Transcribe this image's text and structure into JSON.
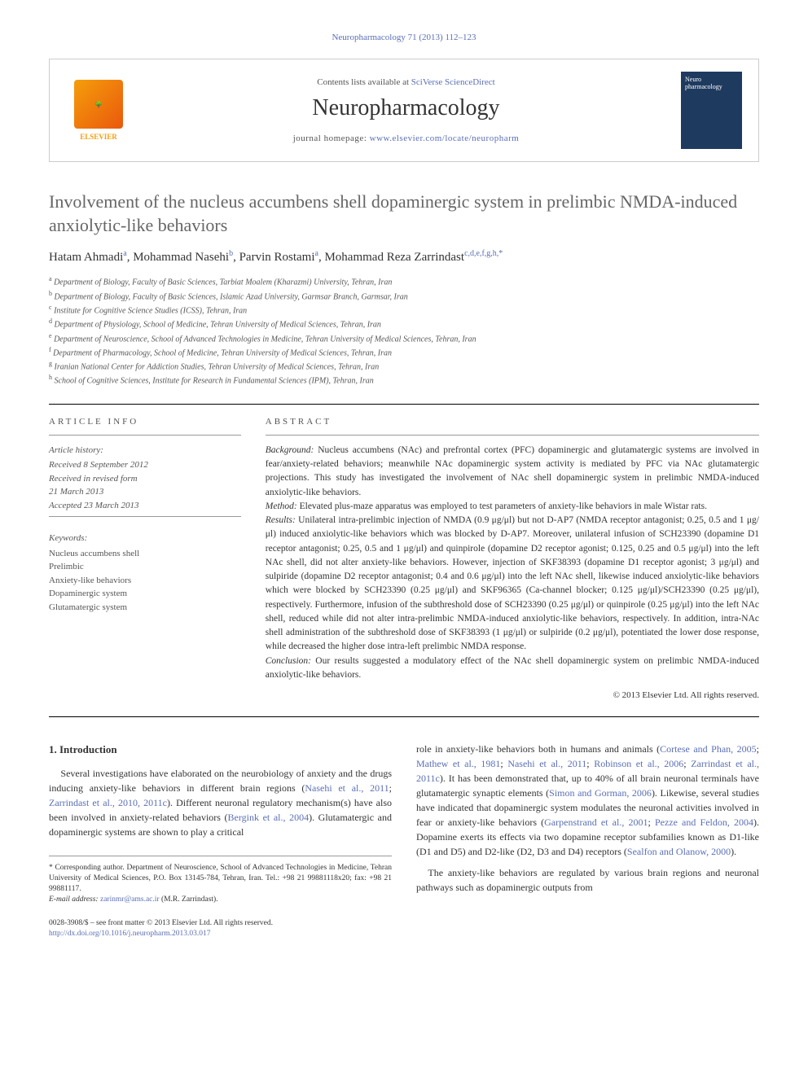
{
  "header": {
    "citation": "Neuropharmacology 71 (2013) 112–123"
  },
  "masthead": {
    "publisher": "ELSEVIER",
    "contents_prefix": "Contents lists available at ",
    "contents_link": "SciVerse ScienceDirect",
    "journal": "Neuropharmacology",
    "homepage_prefix": "journal homepage: ",
    "homepage_url": "www.elsevier.com/locate/neuropharm",
    "cover_label": "Neuro pharmacology"
  },
  "article": {
    "title": "Involvement of the nucleus accumbens shell dopaminergic system in prelimbic NMDA-induced anxiolytic-like behaviors",
    "authors": [
      {
        "name": "Hatam Ahmadi",
        "sup": "a"
      },
      {
        "name": "Mohammad Nasehi",
        "sup": "b"
      },
      {
        "name": "Parvin Rostami",
        "sup": "a"
      },
      {
        "name": "Mohammad Reza Zarrindast",
        "sup": "c,d,e,f,g,h,",
        "corr": true
      }
    ],
    "affiliations": [
      {
        "sup": "a",
        "text": "Department of Biology, Faculty of Basic Sciences, Tarbiat Moalem (Kharazmi) University, Tehran, Iran"
      },
      {
        "sup": "b",
        "text": "Department of Biology, Faculty of Basic Sciences, Islamic Azad University, Garmsar Branch, Garmsar, Iran"
      },
      {
        "sup": "c",
        "text": "Institute for Cognitive Science Studies (ICSS), Tehran, Iran"
      },
      {
        "sup": "d",
        "text": "Department of Physiology, School of Medicine, Tehran University of Medical Sciences, Tehran, Iran"
      },
      {
        "sup": "e",
        "text": "Department of Neuroscience, School of Advanced Technologies in Medicine, Tehran University of Medical Sciences, Tehran, Iran"
      },
      {
        "sup": "f",
        "text": "Department of Pharmacology, School of Medicine, Tehran University of Medical Sciences, Tehran, Iran"
      },
      {
        "sup": "g",
        "text": "Iranian National Center for Addiction Studies, Tehran University of Medical Sciences, Tehran, Iran"
      },
      {
        "sup": "h",
        "text": "School of Cognitive Sciences, Institute for Research in Fundamental Sciences (IPM), Tehran, Iran"
      }
    ]
  },
  "info": {
    "label": "ARTICLE INFO",
    "history_heading": "Article history:",
    "history": [
      "Received 8 September 2012",
      "Received in revised form",
      "21 March 2013",
      "Accepted 23 March 2013"
    ],
    "keywords_heading": "Keywords:",
    "keywords": [
      "Nucleus accumbens shell",
      "Prelimbic",
      "Anxiety-like behaviors",
      "Dopaminergic system",
      "Glutamatergic system"
    ]
  },
  "abstract": {
    "label": "ABSTRACT",
    "background_label": "Background:",
    "background": " Nucleus accumbens (NAc) and prefrontal cortex (PFC) dopaminergic and glutamatergic systems are involved in fear/anxiety-related behaviors; meanwhile NAc dopaminergic system activity is mediated by PFC via NAc glutamatergic projections. This study has investigated the involvement of NAc shell dopaminergic system in prelimbic NMDA-induced anxiolytic-like behaviors.",
    "method_label": "Method:",
    "method": " Elevated plus-maze apparatus was employed to test parameters of anxiety-like behaviors in male Wistar rats.",
    "results_label": "Results:",
    "results": " Unilateral intra-prelimbic injection of NMDA (0.9 μg/μl) but not D-AP7 (NMDA receptor antagonist; 0.25, 0.5 and 1 μg/μl) induced anxiolytic-like behaviors which was blocked by D-AP7. Moreover, unilateral infusion of SCH23390 (dopamine D1 receptor antagonist; 0.25, 0.5 and 1 μg/μl) and quinpirole (dopamine D2 receptor agonist; 0.125, 0.25 and 0.5 μg/μl) into the left NAc shell, did not alter anxiety-like behaviors. However, injection of SKF38393 (dopamine D1 receptor agonist; 3 μg/μl) and sulpiride (dopamine D2 receptor antagonist; 0.4 and 0.6 μg/μl) into the left NAc shell, likewise induced anxiolytic-like behaviors which were blocked by SCH23390 (0.25 μg/μl) and SKF96365 (Ca-channel blocker; 0.125 μg/μl)/SCH23390 (0.25 μg/μl), respectively. Furthermore, infusion of the subthreshold dose of SCH23390 (0.25 μg/μl) or quinpirole (0.25 μg/μl) into the left NAc shell, reduced while did not alter intra-prelimbic NMDA-induced anxiolytic-like behaviors, respectively. In addition, intra-NAc shell administration of the subthreshold dose of SKF38393 (1 μg/μl) or sulpiride (0.2 μg/μl), potentiated the lower dose response, while decreased the higher dose intra-left prelimbic NMDA response.",
    "conclusion_label": "Conclusion:",
    "conclusion": " Our results suggested a modulatory effect of the NAc shell dopaminergic system on prelimbic NMDA-induced anxiolytic-like behaviors.",
    "copyright": "© 2013 Elsevier Ltd. All rights reserved."
  },
  "body": {
    "heading": "1. Introduction",
    "col1_p1": "Several investigations have elaborated on the neurobiology of anxiety and the drugs inducing anxiety-like behaviors in different brain regions (",
    "col1_r1": "Nasehi et al., 2011",
    "col1_s1": "; ",
    "col1_r2": "Zarrindast et al., 2010, 2011c",
    "col1_p1b": "). Different neuronal regulatory mechanism(s) have also been involved in anxiety-related behaviors (",
    "col1_r3": "Bergink et al., 2004",
    "col1_p1c": "). Glutamatergic and dopaminergic systems are shown to play a critical",
    "col2_p1": "role in anxiety-like behaviors both in humans and animals (",
    "col2_r1": "Cortese and Phan, 2005",
    "col2_s1": "; ",
    "col2_r2": "Mathew et al., 1981",
    "col2_s2": "; ",
    "col2_r3": "Nasehi et al., 2011",
    "col2_s3": "; ",
    "col2_r4": "Robinson et al., 2006",
    "col2_s4": "; ",
    "col2_r5": "Zarrindast et al., 2011c",
    "col2_p1b": "). It has been demonstrated that, up to 40% of all brain neuronal terminals have glutamatergic synaptic elements (",
    "col2_r6": "Simon and Gorman, 2006",
    "col2_p1c": "). Likewise, several studies have indicated that dopaminergic system modulates the neuronal activities involved in fear or anxiety-like behaviors (",
    "col2_r7": "Garpenstrand et al., 2001",
    "col2_s5": "; ",
    "col2_r8": "Pezze and Feldon, 2004",
    "col2_p1d": "). Dopamine exerts its effects via two dopamine receptor subfamilies known as D1-like (D1 and D5) and D2-like (D2, D3 and D4) receptors (",
    "col2_r9": "Sealfon and Olanow, 2000",
    "col2_p1e": ").",
    "col2_p2": "The anxiety-like behaviors are regulated by various brain regions and neuronal pathways such as dopaminergic outputs from"
  },
  "footnote": {
    "corr_symbol": "*",
    "corr_text": " Corresponding author. Department of Neuroscience, School of Advanced Technologies in Medicine, Tehran University of Medical Sciences, P.O. Box 13145-784, Tehran, Iran. Tel.: +98 21 99881118x20; fax: +98 21 99881117.",
    "email_label": "E-mail address: ",
    "email": "zarinmr@ams.ac.ir",
    "email_suffix": " (M.R. Zarrindast)."
  },
  "bottom": {
    "issn": "0028-3908/$ – see front matter © 2013 Elsevier Ltd. All rights reserved.",
    "doi_label": "http://dx.doi.org/",
    "doi": "10.1016/j.neuropharm.2013.03.017"
  }
}
